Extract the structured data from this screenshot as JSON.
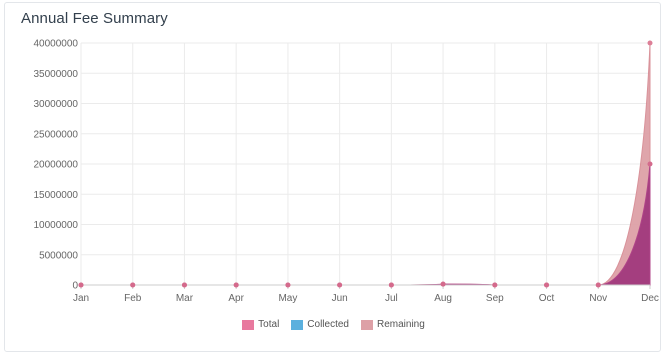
{
  "card": {
    "title": "Annual Fee Summary"
  },
  "chart_data": {
    "type": "area",
    "title": "Annual Fee Summary",
    "categories": [
      "Jan",
      "Feb",
      "Mar",
      "Apr",
      "May",
      "Jun",
      "Jul",
      "Aug",
      "Sep",
      "Oct",
      "Nov",
      "Dec"
    ],
    "yticks": [
      "0",
      "5000000",
      "10000000",
      "15000000",
      "20000000",
      "25000000",
      "30000000",
      "35000000",
      "40000000"
    ],
    "ylim": [
      0,
      40000000
    ],
    "grid": true,
    "legend_position": "bottom",
    "series": [
      {
        "name": "Total",
        "color": "#e8799e",
        "values": [
          0,
          0,
          0,
          0,
          0,
          0,
          0,
          150000,
          0,
          0,
          0,
          40000000
        ]
      },
      {
        "name": "Collected",
        "color": "#5bb0de",
        "values": [
          0,
          0,
          0,
          0,
          0,
          0,
          0,
          0,
          0,
          0,
          0,
          0
        ]
      },
      {
        "name": "Remaining",
        "color": "#dda0a6",
        "values": [
          0,
          0,
          0,
          0,
          0,
          0,
          0,
          150000,
          0,
          0,
          0,
          20000000
        ]
      }
    ]
  }
}
